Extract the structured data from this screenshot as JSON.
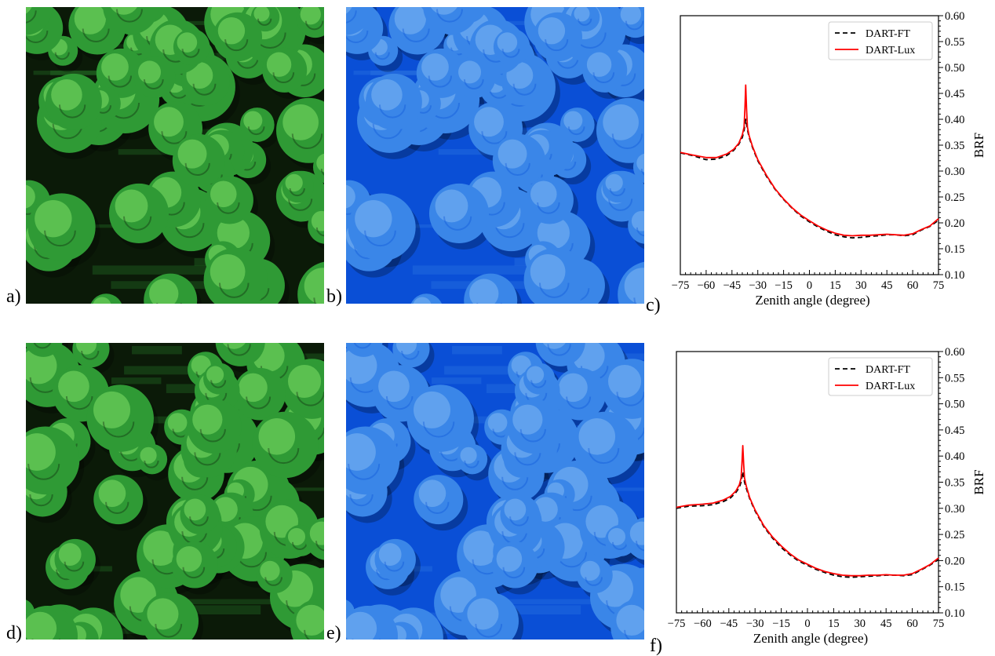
{
  "panels": {
    "a": "a)",
    "b": "b)",
    "c": "c)",
    "d": "d)",
    "e": "e)",
    "f": "f)"
  },
  "images": {
    "a": {
      "description": "Simulated RGB top-of-canopy image of tree crowns",
      "colors": {
        "background": "#0b1a08",
        "canopy": "#2f9a35",
        "highlight": "#7fe066"
      }
    },
    "b": {
      "description": "Simulated blue-channel image of tree crowns",
      "colors": {
        "background": "#0a4fd6",
        "canopy": "#3a86e8",
        "highlight": "#7fb8f2"
      }
    },
    "d": {
      "description": "Simulated RGB top-of-canopy image of tree crowns",
      "colors": {
        "background": "#0b1a08",
        "canopy": "#2f9a35",
        "highlight": "#7fe066"
      }
    },
    "e": {
      "description": "Simulated blue-channel image of tree crowns",
      "colors": {
        "background": "#0a4fd6",
        "canopy": "#3a86e8",
        "highlight": "#7fb8f2"
      }
    }
  },
  "chart_data": [
    {
      "type": "line",
      "panel": "c",
      "xlabel": "Zenith angle (degree)",
      "ylabel": "BRF",
      "xlim": [
        -75,
        75
      ],
      "ylim": [
        0.1,
        0.6
      ],
      "xticks": [
        -75,
        -60,
        -45,
        -30,
        -15,
        0,
        15,
        30,
        45,
        60,
        75
      ],
      "xtick_labels": [
        "−75",
        "−60",
        "−45",
        "−30",
        "−15",
        "0",
        "15",
        "30",
        "45",
        "60",
        "75"
      ],
      "yticks": [
        0.1,
        0.15,
        0.2,
        0.25,
        0.3,
        0.35,
        0.4,
        0.45,
        0.5,
        0.55,
        0.6
      ],
      "ytick_labels": [
        "0.10",
        "0.15",
        "0.20",
        "0.25",
        "0.30",
        "0.35",
        "0.40",
        "0.45",
        "0.50",
        "0.55",
        "0.60"
      ],
      "yaxis_side": "right",
      "legend_position": "top-right",
      "series": [
        {
          "name": "DART-FT",
          "color": "#000000",
          "style": "dashed",
          "x": [
            -75,
            -68,
            -60,
            -54,
            -48,
            -44,
            -41,
            -39,
            -38,
            -37,
            -36,
            -35,
            -33,
            -30,
            -25,
            -20,
            -15,
            -10,
            -5,
            0,
            5,
            10,
            15,
            20,
            25,
            30,
            35,
            40,
            45,
            50,
            55,
            60,
            65,
            70,
            75
          ],
          "y": [
            0.335,
            0.33,
            0.322,
            0.323,
            0.33,
            0.34,
            0.352,
            0.365,
            0.378,
            0.4,
            0.38,
            0.365,
            0.345,
            0.32,
            0.29,
            0.265,
            0.245,
            0.228,
            0.213,
            0.202,
            0.192,
            0.184,
            0.177,
            0.173,
            0.171,
            0.172,
            0.174,
            0.175,
            0.177,
            0.177,
            0.175,
            0.177,
            0.186,
            0.193,
            0.205
          ]
        },
        {
          "name": "DART-Lux",
          "color": "#ff0000",
          "style": "solid",
          "x": [
            -75,
            -68,
            -60,
            -54,
            -48,
            -44,
            -41,
            -39,
            -38,
            -37.5,
            -37,
            -36.5,
            -36,
            -35,
            -33,
            -30,
            -25,
            -20,
            -15,
            -10,
            -5,
            0,
            5,
            10,
            15,
            20,
            25,
            30,
            35,
            40,
            45,
            50,
            55,
            60,
            65,
            70,
            75
          ],
          "y": [
            0.336,
            0.331,
            0.326,
            0.326,
            0.333,
            0.342,
            0.354,
            0.37,
            0.385,
            0.42,
            0.466,
            0.42,
            0.385,
            0.368,
            0.347,
            0.322,
            0.292,
            0.266,
            0.246,
            0.229,
            0.215,
            0.204,
            0.194,
            0.186,
            0.18,
            0.176,
            0.175,
            0.176,
            0.176,
            0.177,
            0.178,
            0.177,
            0.176,
            0.179,
            0.187,
            0.194,
            0.208
          ]
        }
      ]
    },
    {
      "type": "line",
      "panel": "f",
      "xlabel": "Zenith angle (degree)",
      "ylabel": "BRF",
      "xlim": [
        -75,
        75
      ],
      "ylim": [
        0.1,
        0.6
      ],
      "xticks": [
        -75,
        -60,
        -45,
        -30,
        -15,
        0,
        15,
        30,
        45,
        60,
        75
      ],
      "xtick_labels": [
        "−75",
        "−60",
        "−45",
        "−30",
        "−15",
        "0",
        "15",
        "30",
        "45",
        "60",
        "75"
      ],
      "yticks": [
        0.1,
        0.15,
        0.2,
        0.25,
        0.3,
        0.35,
        0.4,
        0.45,
        0.5,
        0.55,
        0.6
      ],
      "ytick_labels": [
        "0.10",
        "0.15",
        "0.20",
        "0.25",
        "0.30",
        "0.35",
        "0.40",
        "0.45",
        "0.50",
        "0.55",
        "0.60"
      ],
      "yaxis_side": "right",
      "legend_position": "top-right",
      "series": [
        {
          "name": "DART-FT",
          "color": "#000000",
          "style": "dashed",
          "x": [
            -75,
            -68,
            -60,
            -54,
            -48,
            -44,
            -41,
            -39,
            -38,
            -37,
            -36,
            -35,
            -33,
            -30,
            -25,
            -20,
            -15,
            -10,
            -5,
            0,
            5,
            10,
            15,
            20,
            25,
            30,
            35,
            40,
            45,
            50,
            55,
            60,
            65,
            70,
            75
          ],
          "y": [
            0.3,
            0.304,
            0.305,
            0.307,
            0.313,
            0.32,
            0.33,
            0.34,
            0.35,
            0.37,
            0.35,
            0.338,
            0.318,
            0.295,
            0.265,
            0.243,
            0.225,
            0.211,
            0.199,
            0.191,
            0.183,
            0.177,
            0.172,
            0.169,
            0.168,
            0.169,
            0.17,
            0.171,
            0.172,
            0.172,
            0.171,
            0.173,
            0.182,
            0.191,
            0.202
          ]
        },
        {
          "name": "DART-Lux",
          "color": "#ff0000",
          "style": "solid",
          "x": [
            -75,
            -68,
            -60,
            -54,
            -48,
            -44,
            -41,
            -39,
            -38,
            -37.5,
            -37,
            -36.5,
            -36,
            -35,
            -33,
            -30,
            -25,
            -20,
            -15,
            -10,
            -5,
            0,
            5,
            10,
            15,
            20,
            25,
            30,
            35,
            40,
            45,
            50,
            55,
            60,
            65,
            70,
            75
          ],
          "y": [
            0.302,
            0.306,
            0.308,
            0.31,
            0.316,
            0.323,
            0.333,
            0.345,
            0.358,
            0.385,
            0.42,
            0.385,
            0.358,
            0.342,
            0.32,
            0.297,
            0.267,
            0.245,
            0.228,
            0.213,
            0.201,
            0.193,
            0.185,
            0.179,
            0.175,
            0.172,
            0.171,
            0.171,
            0.172,
            0.172,
            0.173,
            0.172,
            0.172,
            0.175,
            0.183,
            0.192,
            0.205
          ]
        }
      ]
    }
  ]
}
